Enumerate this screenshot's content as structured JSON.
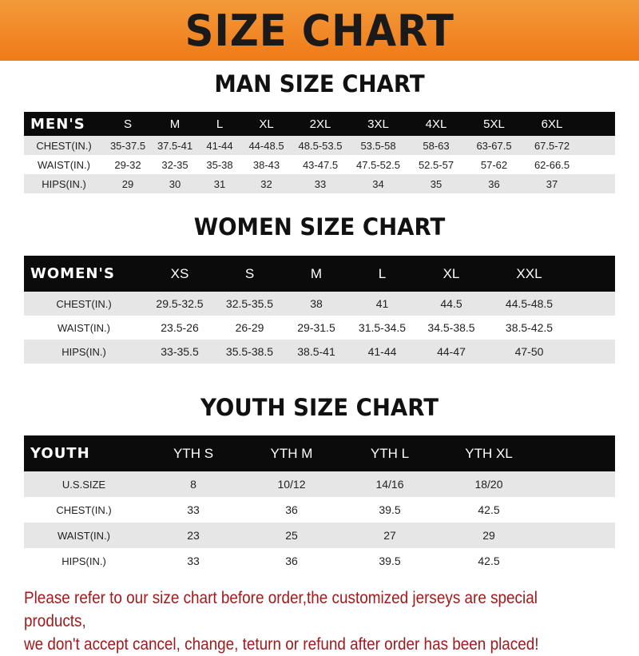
{
  "banner": "SIZE CHART",
  "men": {
    "title": "MAN SIZE CHART",
    "header": [
      "MEN'S",
      "S",
      "M",
      "L",
      "XL",
      "2XL",
      "3XL",
      "4XL",
      "5XL",
      "6XL"
    ],
    "rows": [
      [
        "CHEST(IN.)",
        "35-37.5",
        "37.5-41",
        "41-44",
        "44-48.5",
        "48.5-53.5",
        "53.5-58",
        "58-63",
        "63-67.5",
        "67.5-72"
      ],
      [
        "WAIST(IN.)",
        "29-32",
        "32-35",
        "35-38",
        "38-43",
        "43-47.5",
        "47.5-52.5",
        "52.5-57",
        "57-62",
        "62-66.5"
      ],
      [
        "HIPS(IN.)",
        "29",
        "30",
        "31",
        "32",
        "33",
        "34",
        "35",
        "36",
        "37"
      ]
    ]
  },
  "women": {
    "title": "WOMEN SIZE CHART",
    "header": [
      "WOMEN'S",
      "XS",
      "S",
      "M",
      "L",
      "XL",
      "XXL"
    ],
    "rows": [
      [
        "CHEST(IN.)",
        "29.5-32.5",
        "32.5-35.5",
        "38",
        "41",
        "44.5",
        "44.5-48.5"
      ],
      [
        "WAIST(IN.)",
        "23.5-26",
        "26-29",
        "29-31.5",
        "31.5-34.5",
        "34.5-38.5",
        "38.5-42.5"
      ],
      [
        "HIPS(IN.)",
        "33-35.5",
        "35.5-38.5",
        "38.5-41",
        "41-44",
        "44-47",
        "47-50"
      ]
    ]
  },
  "youth": {
    "title": "YOUTH SIZE CHART",
    "header": [
      "YOUTH",
      "YTH S",
      "YTH M",
      "YTH L",
      "YTH XL"
    ],
    "rows": [
      [
        "U.S.SIZE",
        "8",
        "10/12",
        "14/16",
        "18/20"
      ],
      [
        "CHEST(IN.)",
        "33",
        "36",
        "39.5",
        "42.5"
      ],
      [
        "WAIST(IN.)",
        "23",
        "25",
        "27",
        "29"
      ],
      [
        "HIPS(IN.)",
        "33",
        "36",
        "39.5",
        "42.5"
      ]
    ]
  },
  "note": [
    "Please refer to our size chart before order,the customized jerseys are special products,",
    "we don't accept cancel, change, teturn or refund after order has been placed!"
  ],
  "colors": {
    "banner": "#f07a18",
    "note": "#a3191c",
    "header_row": "#0b0b0b",
    "stripe": "#e6e6e6"
  }
}
